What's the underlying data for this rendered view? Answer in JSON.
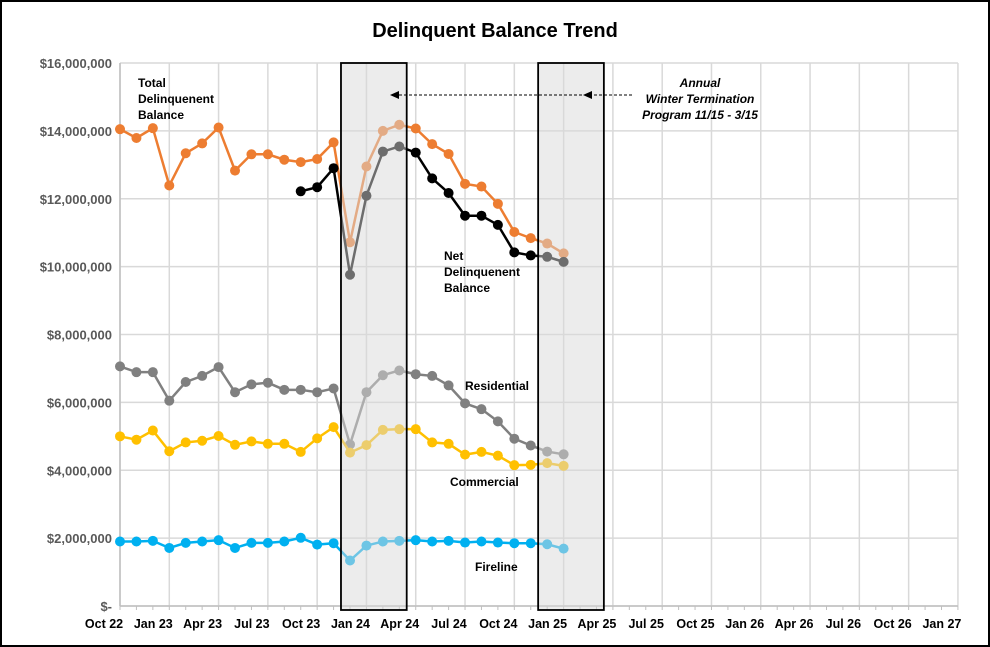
{
  "chart_data": {
    "type": "line",
    "title": "Delinquent Balance Trend",
    "xlabel": "",
    "ylabel": "",
    "ylim": [
      0,
      16000000
    ],
    "y_ticks": [
      "$-",
      "$2,000,000",
      "$4,000,000",
      "$6,000,000",
      "$8,000,000",
      "$10,000,000",
      "$12,000,000",
      "$14,000,000",
      "$16,000,000"
    ],
    "x_ticks": [
      "Oct 22",
      "Jan 23",
      "Apr 23",
      "Jul 23",
      "Oct 23",
      "Jan 24",
      "Apr 24",
      "Jul 24",
      "Oct 24",
      "Jan 25",
      "Apr 25",
      "Jul 25",
      "Oct 25",
      "Jan 26",
      "Apr 26",
      "Jul 26",
      "Oct 26",
      "Jan 27"
    ],
    "x": [
      "Oct 22",
      "Nov 22",
      "Dec 22",
      "Jan 23",
      "Feb 23",
      "Mar 23",
      "Apr 23",
      "May 23",
      "Jun 23",
      "Jul 23",
      "Aug 23",
      "Sep 23",
      "Oct 23",
      "Nov 23",
      "Dec 23",
      "Jan 24",
      "Feb 24",
      "Mar 24",
      "Apr 24",
      "May 24",
      "Jun 24",
      "Jul 24",
      "Aug 24",
      "Sep 24",
      "Oct 24",
      "Nov 24",
      "Dec 24",
      "Jan 25"
    ],
    "grid": true,
    "legend": "none",
    "series": [
      {
        "name": "Total Delinquenent Balance",
        "color": "#ED7D31",
        "values": [
          14050000,
          13790000,
          14080000,
          12390000,
          13340000,
          13630000,
          14100000,
          12830000,
          13310000,
          13310000,
          13150000,
          13080000,
          13170000,
          13660000,
          10720000,
          12950000,
          14000000,
          14180000,
          14070000,
          13610000,
          13320000,
          12440000,
          12360000,
          11850000,
          11020000,
          10840000,
          10680000,
          10390000
        ]
      },
      {
        "name": "Net Delinquenent Balance",
        "color": "#000000",
        "values": [
          null,
          null,
          null,
          null,
          null,
          null,
          null,
          null,
          null,
          null,
          null,
          12220000,
          12340000,
          12900000,
          9760000,
          12090000,
          13390000,
          13540000,
          13360000,
          12600000,
          12170000,
          11500000,
          11500000,
          11230000,
          10420000,
          10330000,
          10290000,
          10140000
        ]
      },
      {
        "name": "Residential",
        "color": "#808080",
        "values": [
          7060000,
          6890000,
          6890000,
          6050000,
          6600000,
          6780000,
          7040000,
          6300000,
          6530000,
          6580000,
          6370000,
          6370000,
          6300000,
          6410000,
          4760000,
          6300000,
          6800000,
          6940000,
          6830000,
          6780000,
          6500000,
          5970000,
          5800000,
          5440000,
          4930000,
          4730000,
          4550000,
          4470000
        ]
      },
      {
        "name": "Commercial",
        "color": "#FFC000",
        "values": [
          5000000,
          4900000,
          5170000,
          4560000,
          4820000,
          4870000,
          5010000,
          4750000,
          4850000,
          4780000,
          4780000,
          4540000,
          4940000,
          5270000,
          4520000,
          4740000,
          5190000,
          5210000,
          5210000,
          4820000,
          4780000,
          4460000,
          4540000,
          4430000,
          4150000,
          4160000,
          4210000,
          4130000
        ]
      },
      {
        "name": "Fireline",
        "color": "#00B0F0",
        "values": [
          1900000,
          1900000,
          1920000,
          1710000,
          1860000,
          1900000,
          1940000,
          1710000,
          1860000,
          1860000,
          1900000,
          2010000,
          1810000,
          1850000,
          1340000,
          1780000,
          1900000,
          1920000,
          1940000,
          1900000,
          1920000,
          1870000,
          1900000,
          1870000,
          1850000,
          1850000,
          1820000,
          1690000
        ]
      }
    ],
    "labels": {
      "total": [
        "Total",
        "Delinquenent",
        "Balance"
      ],
      "net": [
        "Net",
        "Delinquenent",
        "Balance"
      ],
      "residential": "Residential",
      "commercial": "Commercial",
      "fireline": "Fireline"
    },
    "annotation": [
      "Annual",
      "Winter Termination",
      "Program 11/15 - 3/15"
    ],
    "shaded_periods": [
      [
        "Nov 23",
        "Mar 24"
      ],
      [
        "Nov 24",
        "Mar 25"
      ]
    ]
  }
}
